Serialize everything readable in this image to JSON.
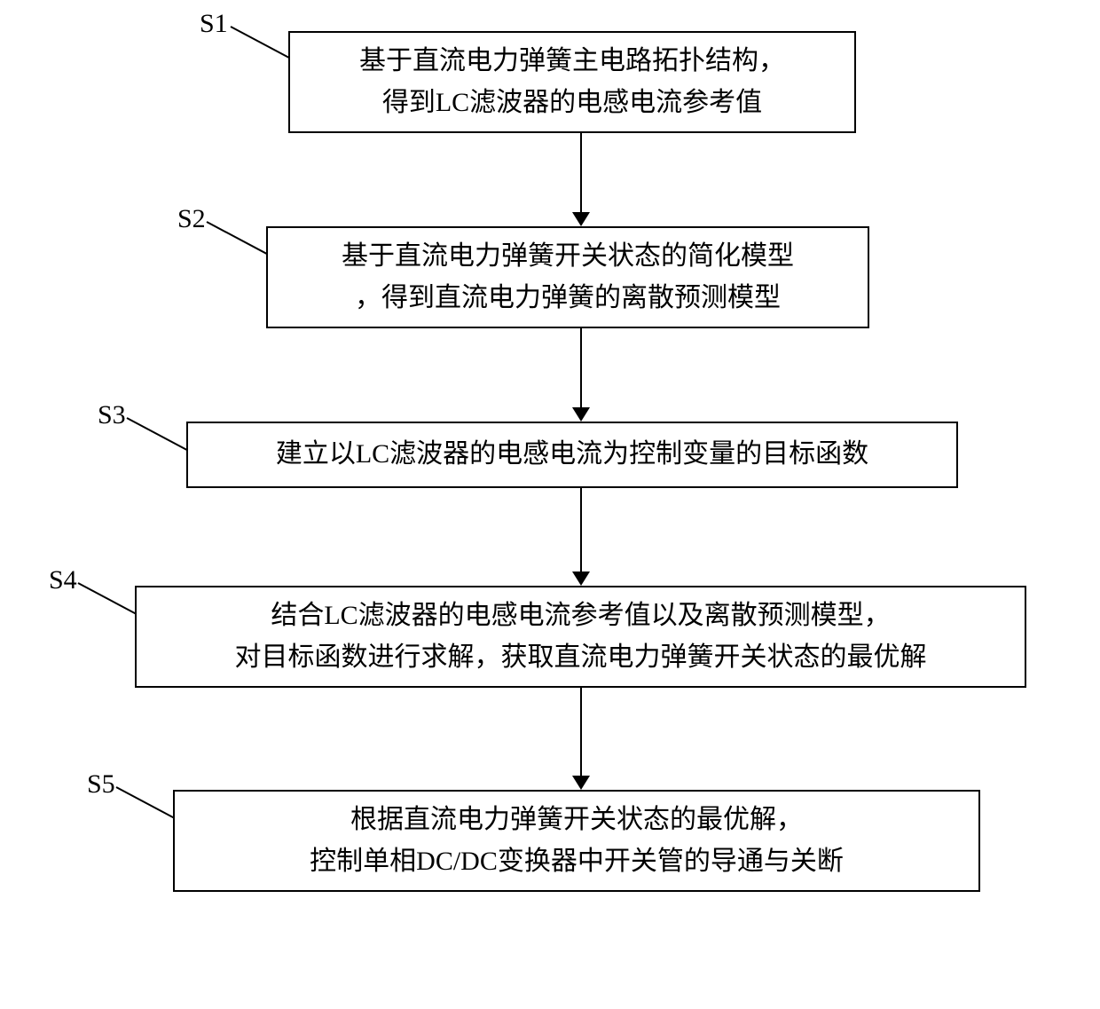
{
  "flowchart": {
    "type": "flowchart",
    "background_color": "#ffffff",
    "border_color": "#000000",
    "text_color": "#000000",
    "font_size": 30,
    "font_family": "SimSun",
    "steps": [
      {
        "id": "s1",
        "label": "S1",
        "line1": "基于直流电力弹簧主电路拓扑结构，",
        "line2": "得到LC滤波器的电感电流参考值"
      },
      {
        "id": "s2",
        "label": "S2",
        "line1": "基于直流电力弹簧开关状态的简化模型",
        "line2": "，得到直流电力弹簧的离散预测模型"
      },
      {
        "id": "s3",
        "label": "S3",
        "line1": "建立以LC滤波器的电感电流为控制变量的目标函数",
        "line2": ""
      },
      {
        "id": "s4",
        "label": "S4",
        "line1": "结合LC滤波器的电感电流参考值以及离散预测模型，",
        "line2": "对目标函数进行求解，获取直流电力弹簧开关状态的最优解"
      },
      {
        "id": "s5",
        "label": "S5",
        "line1": "根据直流电力弹簧开关状态的最优解，",
        "line2": "控制单相DC/DC变换器中开关管的导通与关断"
      }
    ],
    "arrows": [
      {
        "from": "s1",
        "to": "s2"
      },
      {
        "from": "s2",
        "to": "s3"
      },
      {
        "from": "s3",
        "to": "s4"
      },
      {
        "from": "s4",
        "to": "s5"
      }
    ]
  }
}
